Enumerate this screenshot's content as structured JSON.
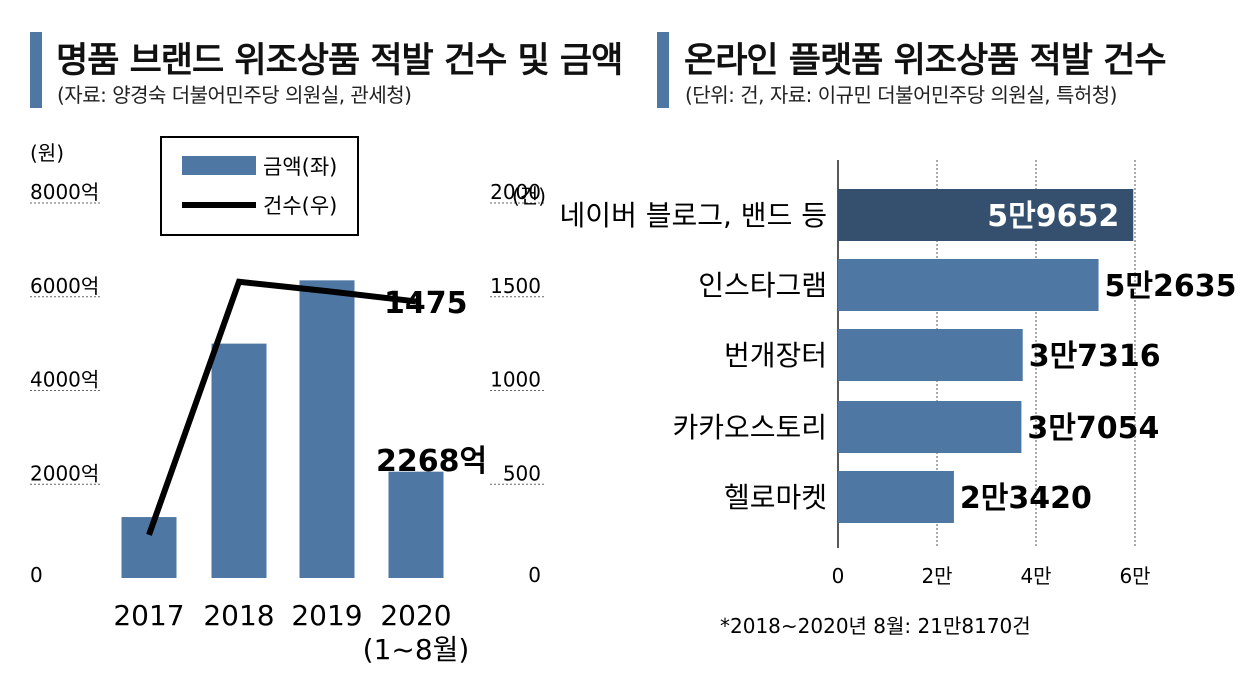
{
  "left": {
    "title": "명품 브랜드 위조상품 적발 건수 및 금액",
    "source": "(자료: 양경숙 더불어민주당 의원실, 관세청)",
    "left_unit": "(원)",
    "right_unit": "(건)",
    "legend": {
      "amount": "금액(좌)",
      "count": "건수(우)"
    },
    "left_ticks": [
      "8000억",
      "6000억",
      "4000억",
      "2000억",
      "0"
    ],
    "right_ticks": [
      "2000",
      "1500",
      "1000",
      "500",
      "0"
    ],
    "x_labels": [
      [
        "2017"
      ],
      [
        "2018"
      ],
      [
        "2019"
      ],
      [
        "2020",
        "(1~8월)"
      ]
    ],
    "annotation_count": "1475",
    "annotation_amount": "2268억"
  },
  "right": {
    "title": "온라인 플랫폼 위조상품 적발 건수",
    "source": "(단위: 건, 자료: 이규민 더불어민주당 의원실, 특허청)",
    "x_ticks": [
      "0",
      "2만",
      "4만",
      "6만"
    ],
    "footnote": "*2018~2020년 8월: 21만8170건"
  },
  "colors": {
    "bar": "#4e78a3",
    "bar_dark": "#35506e",
    "line": "#000000",
    "grid": "#555555"
  },
  "chart_data": [
    {
      "type": "bar+line",
      "title": "명품 브랜드 위조상품 적발 건수 및 금액",
      "categories": [
        "2017",
        "2018",
        "2019",
        "2020 (1~8월)"
      ],
      "series": [
        {
          "name": "금액(좌)",
          "axis": "left",
          "unit": "억원",
          "values": [
            1300,
            5000,
            6350,
            2268
          ]
        },
        {
          "name": "건수(우)",
          "axis": "right",
          "unit": "건",
          "values": [
            230,
            1580,
            1530,
            1475
          ]
        }
      ],
      "ylim_left": [
        0,
        8000
      ],
      "ylim_right": [
        0,
        2000
      ]
    },
    {
      "type": "bar",
      "orientation": "horizontal",
      "title": "온라인 플랫폼 위조상품 적발 건수",
      "categories": [
        "네이버 블로그, 밴드 등",
        "인스타그램",
        "번개장터",
        "카카오스토리",
        "헬로마켓"
      ],
      "values": [
        59652,
        52635,
        37316,
        37054,
        23420
      ],
      "value_labels": [
        "5만9652",
        "5만2635",
        "3만7316",
        "3만7054",
        "2만3420"
      ],
      "xlim": [
        0,
        60000
      ]
    }
  ]
}
